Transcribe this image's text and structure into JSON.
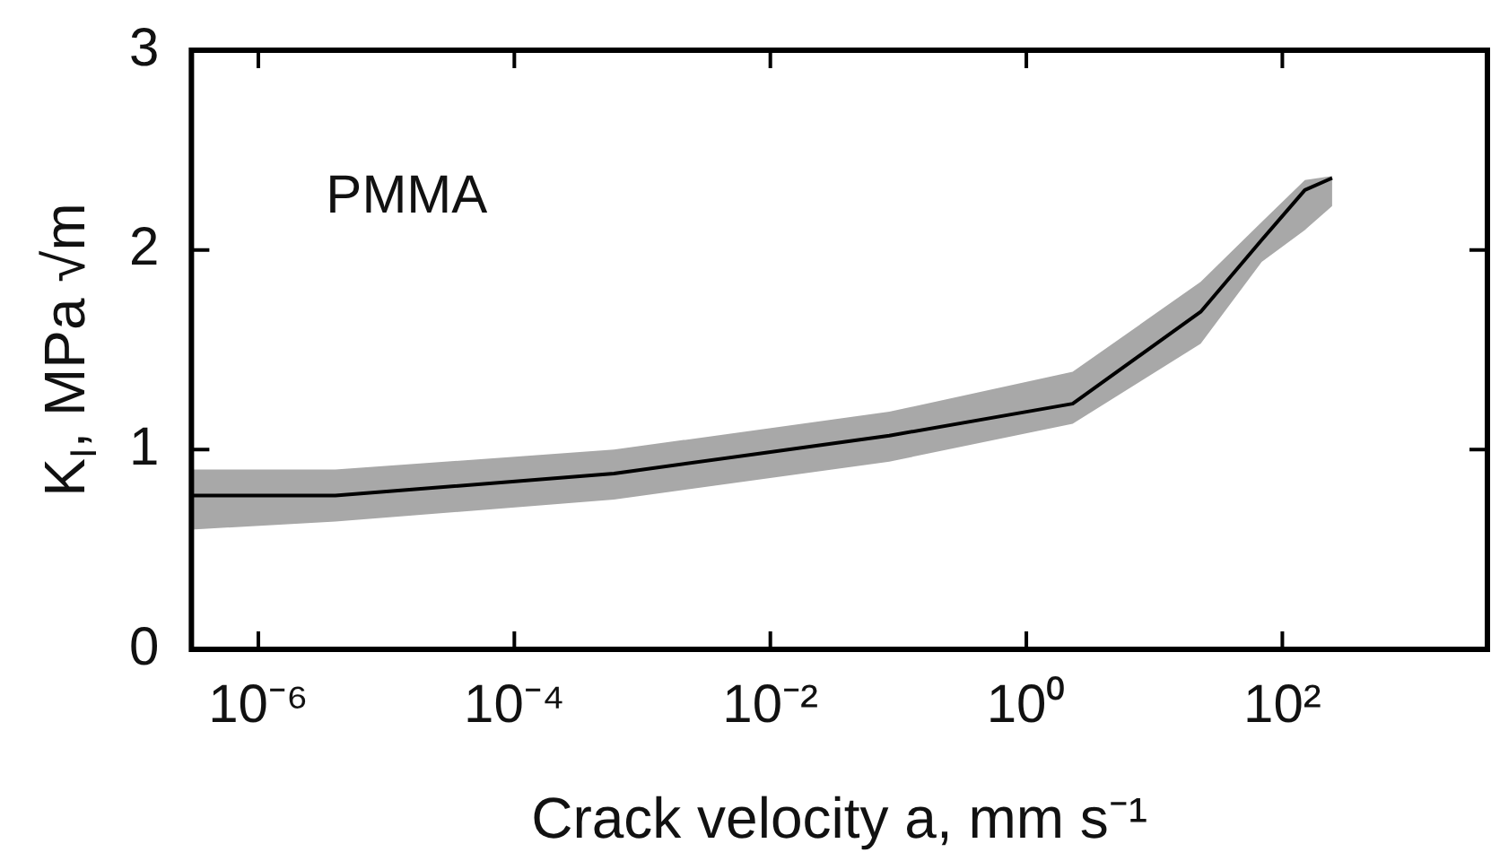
{
  "chart_data": {
    "type": "line",
    "xlabel": "Crack velocity a, mm s⁻¹",
    "ylabel": "K$_{I}$, MPa √m",
    "annotations": [
      "PMMA"
    ],
    "log": "x",
    "xlim": [
      3e-07,
      4000
    ],
    "ylim": [
      0,
      3
    ],
    "xticks": [
      {
        "value": 1e-06,
        "label": "10⁻⁶"
      },
      {
        "value": 0.0001,
        "label": "10⁻⁴"
      },
      {
        "value": 0.01,
        "label": "10⁻²"
      },
      {
        "value": 1,
        "label": "10⁰"
      },
      {
        "value": 100,
        "label": "10²"
      }
    ],
    "yticks": [
      0,
      1,
      2,
      3
    ],
    "grid": false,
    "legend": false,
    "marker": "none",
    "line_style": "solid",
    "series": [
      {
        "color": "#000000",
        "x": [
          3e-07,
          4e-06,
          0.0006,
          0.085,
          2.3,
          23,
          69,
          150,
          245
        ],
        "values": [
          0.77,
          0.77,
          0.88,
          1.07,
          1.23,
          1.69,
          2.05,
          2.3,
          2.36
        ],
        "lower": [
          0.6,
          0.64,
          0.75,
          0.94,
          1.13,
          1.53,
          1.94,
          2.1,
          2.22
        ],
        "upper": [
          0.9,
          0.9,
          1.0,
          1.19,
          1.39,
          1.84,
          2.14,
          2.35,
          2.37
        ]
      }
    ]
  }
}
